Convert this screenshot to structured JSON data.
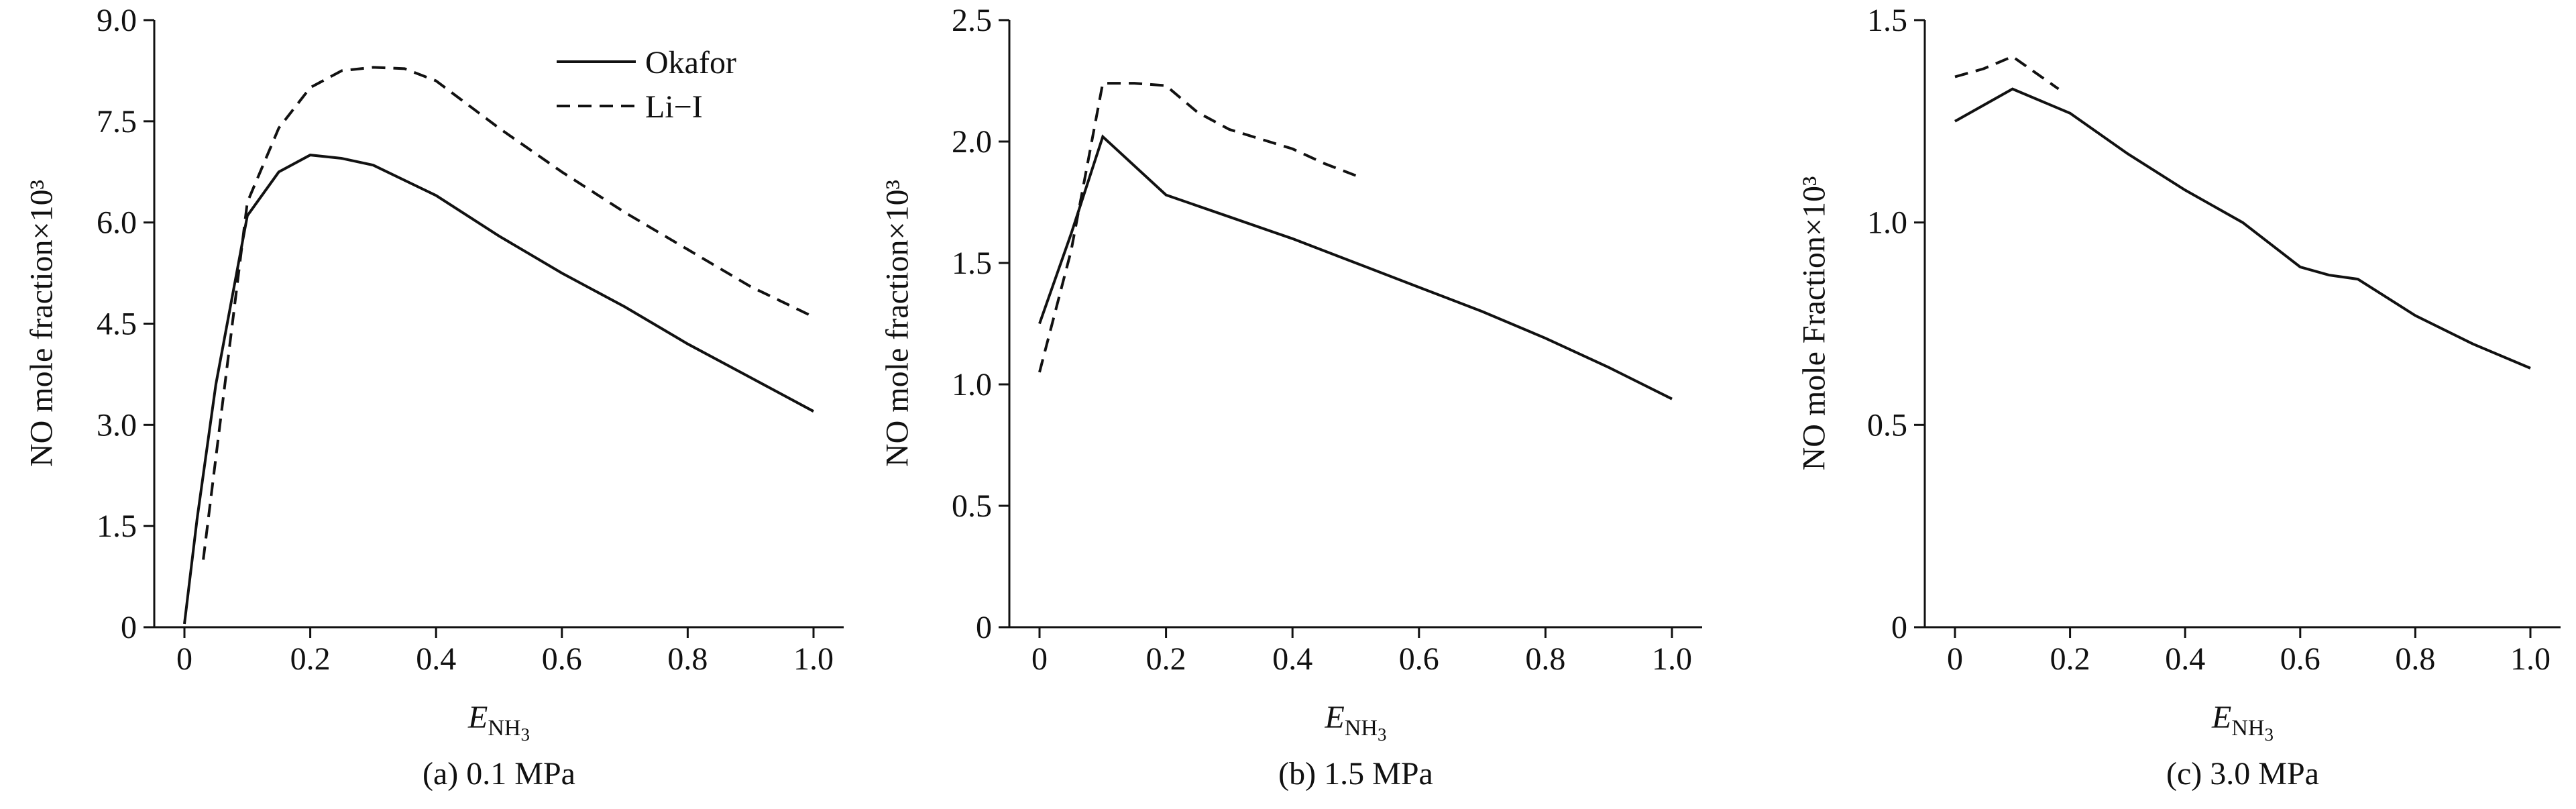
{
  "legend": {
    "items": [
      "Okafor",
      "Li−I"
    ]
  },
  "chart_data": [
    {
      "type": "line",
      "title": "(a) 0.1 MPa",
      "ylabel": "NO mole fraction×10³",
      "xlabel_symbol": "E",
      "xlabel_sub": "NH",
      "xlabel_subsub": "3",
      "xlim": [
        0,
        1.0
      ],
      "ylim": [
        0,
        9.0
      ],
      "xticks": [
        0,
        0.2,
        0.4,
        0.6,
        0.8,
        1.0
      ],
      "xtick_labels": [
        "0",
        "0.2",
        "0.4",
        "0.6",
        "0.8",
        "1.0"
      ],
      "yticks": [
        0,
        1.5,
        3.0,
        4.5,
        6.0,
        7.5,
        9.0
      ],
      "ytick_labels": [
        "0",
        "1.5",
        "3.0",
        "4.5",
        "6.0",
        "7.5",
        "9.0"
      ],
      "legend": true,
      "series": [
        {
          "name": "Okafor",
          "style": "solid",
          "x": [
            0,
            0.02,
            0.05,
            0.1,
            0.15,
            0.2,
            0.25,
            0.3,
            0.4,
            0.5,
            0.6,
            0.7,
            0.8,
            0.9,
            1.0
          ],
          "y": [
            0.05,
            1.6,
            3.6,
            6.1,
            6.75,
            7.0,
            6.95,
            6.85,
            6.4,
            5.8,
            5.25,
            4.75,
            4.2,
            3.7,
            3.2
          ]
        },
        {
          "name": "Li−I",
          "style": "dashed",
          "x": [
            0.03,
            0.1,
            0.15,
            0.2,
            0.25,
            0.3,
            0.35,
            0.4,
            0.5,
            0.6,
            0.7,
            0.8,
            0.9,
            1.0
          ],
          "y": [
            1.0,
            6.3,
            7.4,
            8.0,
            8.25,
            8.3,
            8.28,
            8.1,
            7.4,
            6.75,
            6.15,
            5.6,
            5.05,
            4.6
          ]
        }
      ]
    },
    {
      "type": "line",
      "title": "(b) 1.5 MPa",
      "ylabel": "NO mole fraction×10³",
      "xlabel_symbol": "E",
      "xlabel_sub": "NH",
      "xlabel_subsub": "3",
      "xlim": [
        0,
        1.0
      ],
      "ylim": [
        0,
        2.5
      ],
      "xticks": [
        0,
        0.2,
        0.4,
        0.6,
        0.8,
        1.0
      ],
      "xtick_labels": [
        "0",
        "0.2",
        "0.4",
        "0.6",
        "0.8",
        "1.0"
      ],
      "yticks": [
        0,
        0.5,
        1.0,
        1.5,
        2.0,
        2.5
      ],
      "ytick_labels": [
        "0",
        "0.5",
        "1.0",
        "1.5",
        "2.0",
        "2.5"
      ],
      "legend": false,
      "series": [
        {
          "name": "Okafor",
          "style": "solid",
          "x": [
            0,
            0.05,
            0.1,
            0.2,
            0.3,
            0.4,
            0.5,
            0.6,
            0.7,
            0.8,
            0.9,
            1.0
          ],
          "y": [
            1.25,
            1.62,
            2.02,
            1.78,
            1.69,
            1.6,
            1.5,
            1.4,
            1.3,
            1.19,
            1.07,
            0.94
          ]
        },
        {
          "name": "Li−I",
          "style": "dashed",
          "x": [
            0,
            0.05,
            0.1,
            0.15,
            0.2,
            0.25,
            0.3,
            0.35,
            0.4,
            0.45,
            0.5
          ],
          "y": [
            1.05,
            1.55,
            2.24,
            2.24,
            2.23,
            2.12,
            2.05,
            2.01,
            1.97,
            1.91,
            1.86
          ]
        }
      ]
    },
    {
      "type": "line",
      "title": "(c) 3.0 MPa",
      "ylabel": "NO mole Fraction×10³",
      "xlabel_symbol": "E",
      "xlabel_sub": "NH",
      "xlabel_subsub": "3",
      "xlim": [
        0,
        1.0
      ],
      "ylim": [
        0,
        1.5
      ],
      "xticks": [
        0,
        0.2,
        0.4,
        0.6,
        0.8,
        1.0
      ],
      "xtick_labels": [
        "0",
        "0.2",
        "0.4",
        "0.6",
        "0.8",
        "1.0"
      ],
      "yticks": [
        0,
        0.5,
        1.0,
        1.5
      ],
      "ytick_labels": [
        "0",
        "0.5",
        "1.0",
        "1.5"
      ],
      "legend": false,
      "series": [
        {
          "name": "Okafor",
          "style": "solid",
          "x": [
            0,
            0.1,
            0.2,
            0.3,
            0.4,
            0.5,
            0.6,
            0.65,
            0.7,
            0.8,
            0.9,
            1.0
          ],
          "y": [
            1.25,
            1.33,
            1.27,
            1.17,
            1.08,
            1.0,
            0.89,
            0.87,
            0.86,
            0.77,
            0.7,
            0.64
          ]
        },
        {
          "name": "Li−I",
          "style": "dashed",
          "x": [
            0,
            0.05,
            0.1,
            0.15,
            0.18
          ],
          "y": [
            1.36,
            1.38,
            1.41,
            1.36,
            1.33
          ]
        }
      ]
    }
  ]
}
